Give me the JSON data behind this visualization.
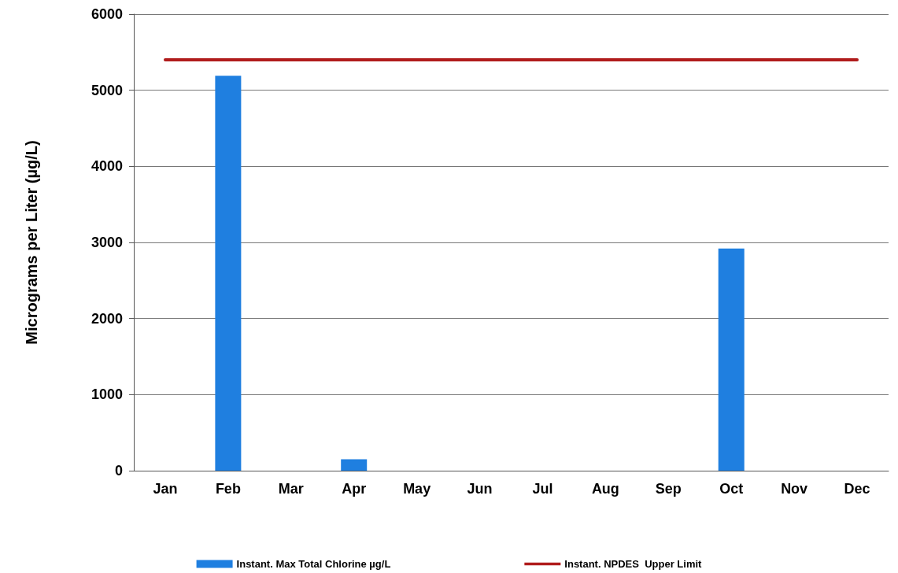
{
  "chart_data": {
    "type": "bar",
    "ylabel": "Micrograms per Liter (µg/L)",
    "categories": [
      "Jan",
      "Feb",
      "Mar",
      "Apr",
      "May",
      "Jun",
      "Jul",
      "Aug",
      "Sep",
      "Oct",
      "Nov",
      "Dec"
    ],
    "series": [
      {
        "name": "Instant. Max Total Chlorine µg/L",
        "color": "#1f7fe0",
        "values": [
          0,
          5190,
          0,
          150,
          0,
          0,
          0,
          0,
          0,
          2920,
          0,
          0
        ]
      },
      {
        "name": "Instant. NPDES  Upper Limit",
        "type": "line",
        "color": "#b01c1c",
        "marker": "none",
        "line_style": "solid",
        "values": [
          5400,
          5400,
          5400,
          5400,
          5400,
          5400,
          5400,
          5400,
          5400,
          5400,
          5400,
          5400
        ]
      }
    ],
    "ylim": [
      0,
      6000
    ],
    "yticks": [
      0,
      1000,
      2000,
      3000,
      4000,
      5000,
      6000
    ],
    "grid": "y",
    "legend": "bottom"
  }
}
